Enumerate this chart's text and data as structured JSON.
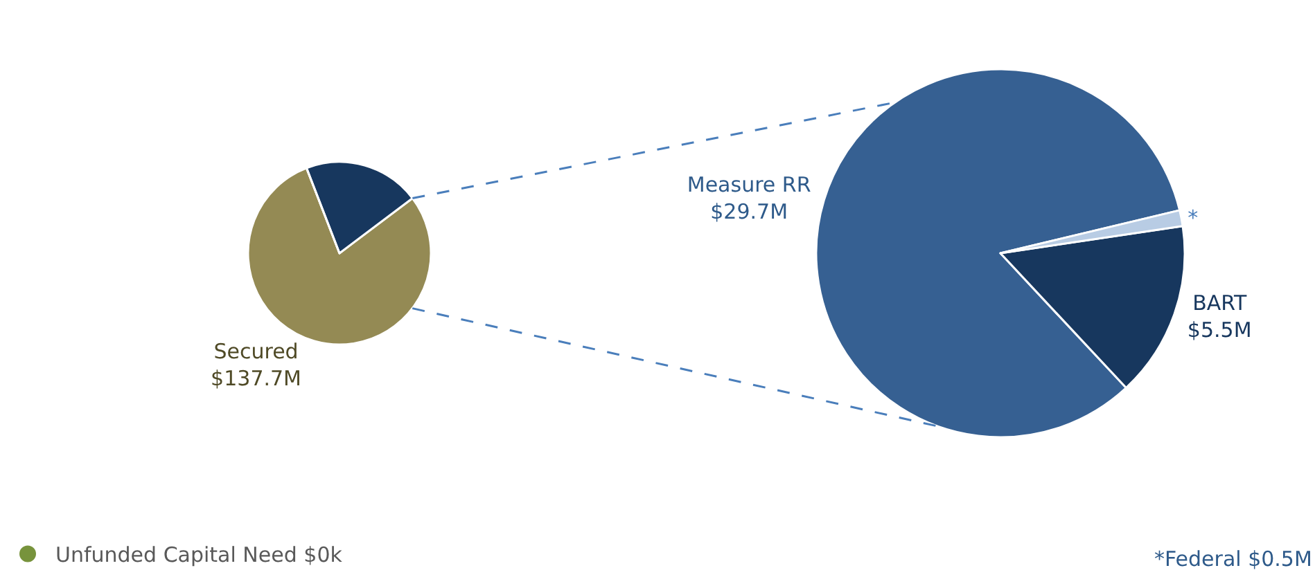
{
  "chart_data": [
    {
      "type": "pie",
      "categories": [
        "Secured",
        null,
        "Unfunded Capital Need"
      ],
      "values": [
        137.7,
        35.7,
        0
      ],
      "colors": [
        "#948a54",
        "#17375e",
        "#77933c"
      ],
      "value_labels": [
        "$137.7M",
        null,
        "$0k"
      ],
      "legend": "bottom left"
    },
    {
      "type": "pie",
      "categories": [
        "Measure RR",
        "BART",
        null
      ],
      "values": [
        29.7,
        5.5,
        0.5
      ],
      "colors": [
        "#366092",
        "#17375e",
        "#b8cce4"
      ],
      "value_labels": [
        "$29.7M",
        "$5.5M",
        "*"
      ],
      "annotations": [
        "*Federal $0.5M"
      ]
    }
  ]
}
